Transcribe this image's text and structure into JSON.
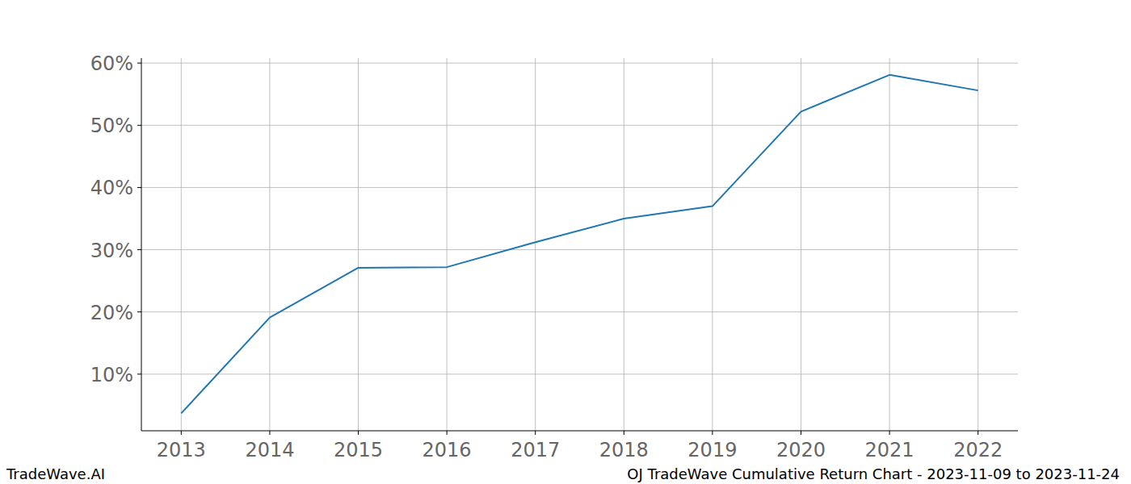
{
  "chart_data": {
    "type": "line",
    "title": "OJ TradeWave Cumulative Return Chart - 2023-11-09 to 2023-11-24",
    "source": "TradeWave.AI",
    "x": [
      2013,
      2014,
      2015,
      2016,
      2017,
      2018,
      2019,
      2020,
      2021,
      2022
    ],
    "values": [
      3.7,
      19.1,
      27.1,
      27.2,
      31.2,
      35.0,
      37.0,
      52.2,
      58.1,
      55.6
    ],
    "color": "#1f77b4",
    "xlim": [
      2012.55,
      2022.45
    ],
    "xticks": [
      2013,
      2014,
      2015,
      2016,
      2017,
      2018,
      2019,
      2020,
      2021,
      2022
    ],
    "ylim": [
      0.9,
      60.8
    ],
    "yticks": [
      {
        "value": 10,
        "label": "10%"
      },
      {
        "value": 20,
        "label": "20%"
      },
      {
        "value": 30,
        "label": "30%"
      },
      {
        "value": 40,
        "label": "40%"
      },
      {
        "value": 50,
        "label": "50%"
      },
      {
        "value": 60,
        "label": "60%"
      }
    ],
    "grid": true
  }
}
